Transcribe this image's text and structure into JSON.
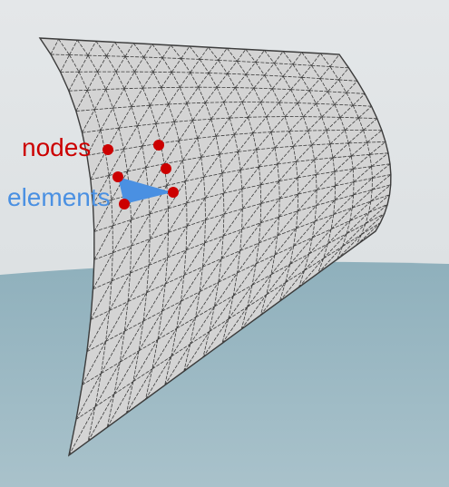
{
  "labels": {
    "nodes": "nodes",
    "elements": "elements"
  },
  "colors": {
    "sky": "#dfe3e5",
    "water": "#9bb8c3",
    "mesh_fill": "#d4d4d4",
    "mesh_line": "#3c3c3c",
    "node": "#cc0000",
    "element": "#4a90e2",
    "nodes_label": "#cc0000",
    "elements_label": "#4a90e2"
  }
}
